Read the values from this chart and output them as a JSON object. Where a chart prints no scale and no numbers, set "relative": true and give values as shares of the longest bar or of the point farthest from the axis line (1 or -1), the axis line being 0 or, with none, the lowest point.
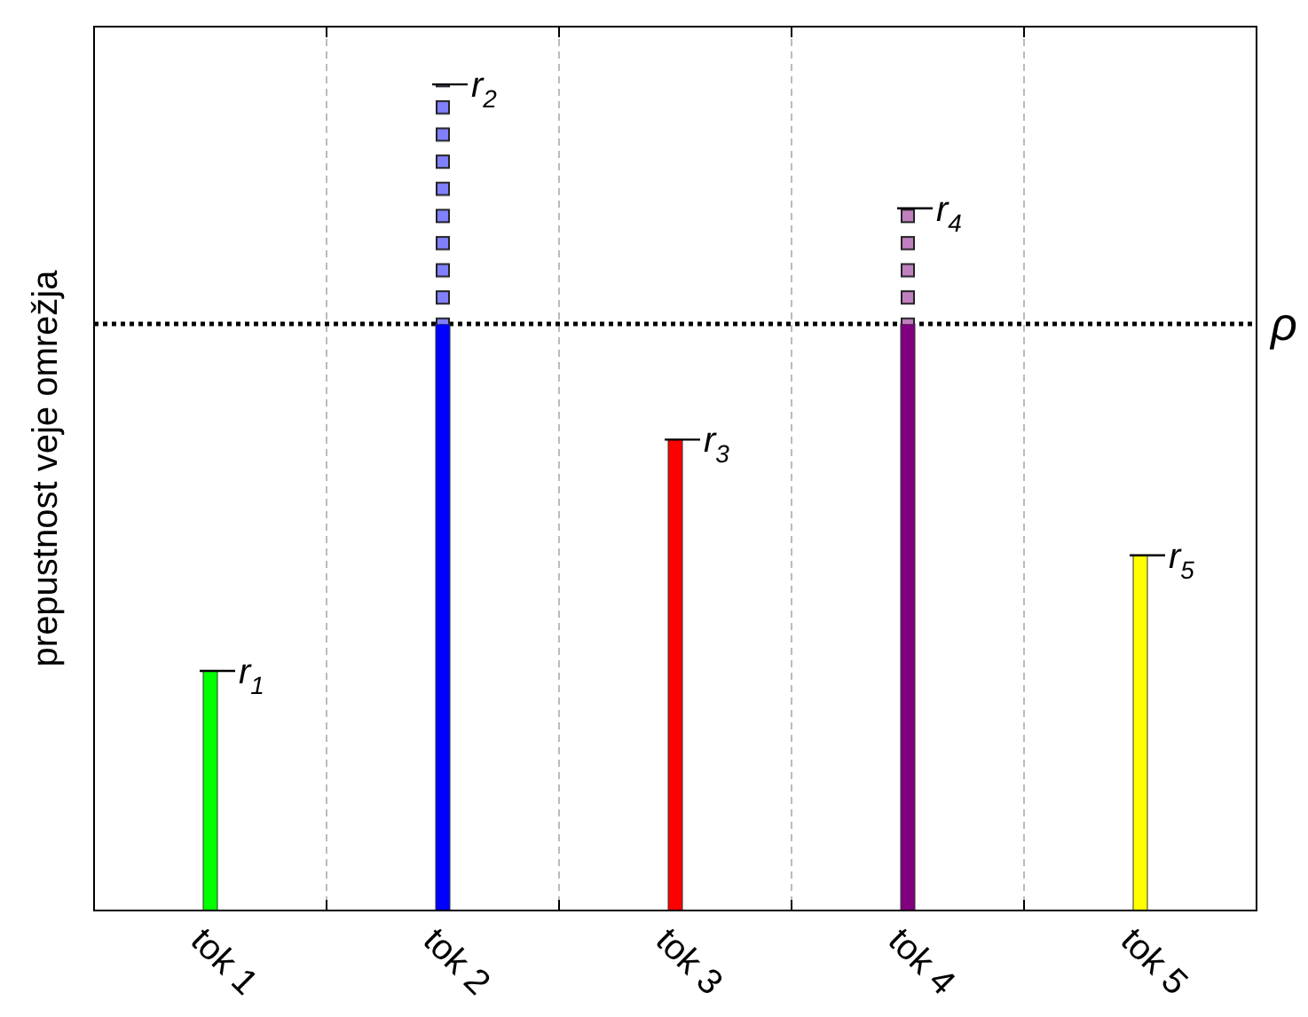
{
  "chart_data": {
    "type": "bar",
    "stacked": true,
    "relative": true,
    "ylabel": "prepustnost veje omrežja",
    "categories": [
      "tok 1",
      "tok 2",
      "tok 3",
      "tok 4",
      "tok 5"
    ],
    "series": [
      {
        "colors": [
          "#00ff00",
          "#0000ff",
          "#ff0000",
          "#800080",
          "#ffff00"
        ],
        "values": [
          0.29,
          0.71,
          0.57,
          0.71,
          0.43
        ]
      },
      {
        "colors": [
          "#8080ff",
          "#8080ff",
          "#8080ff",
          "#c080c0",
          "#c080c0"
        ],
        "line_style": "dotted",
        "values": [
          null,
          0.29,
          null,
          0.14,
          null
        ]
      }
    ],
    "ref_lines": [
      {
        "axis": "y",
        "value": 0.71,
        "label": "ρ",
        "line_style": "dotted",
        "color": "#000000"
      }
    ],
    "annotations": [
      {
        "text": "r$_{1}$",
        "x": "tok 1",
        "y": 0.29
      },
      {
        "text": "r$_{2}$",
        "x": "tok 2",
        "y": 1.0
      },
      {
        "text": "r$_{3}$",
        "x": "tok 3",
        "y": 0.57
      },
      {
        "text": "r$_{4}$",
        "x": "tok 4",
        "y": 0.85
      },
      {
        "text": "r$_{5}$",
        "x": "tok 5",
        "y": 0.43
      }
    ],
    "grid": "x"
  }
}
